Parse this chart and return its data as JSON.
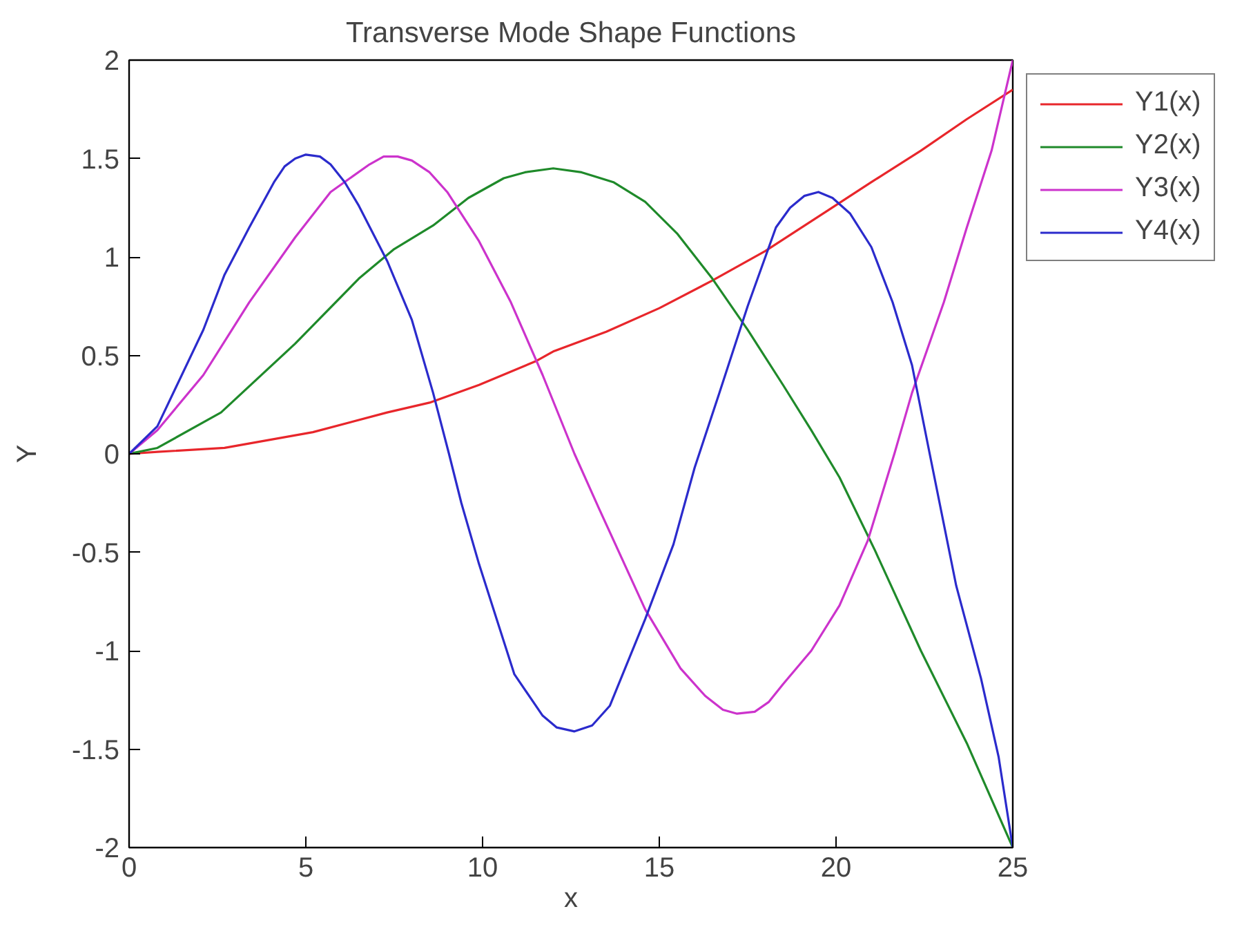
{
  "chart_data": {
    "type": "line",
    "title": "Transverse Mode Shape Functions",
    "xlabel": "x",
    "ylabel": "Y",
    "xlim": [
      0,
      25
    ],
    "ylim": [
      -2,
      2
    ],
    "xticks": [
      0,
      5,
      10,
      15,
      20,
      25
    ],
    "yticks": [
      -2,
      -1.5,
      -1,
      -0.5,
      0,
      0.5,
      1,
      1.5,
      2
    ],
    "legend": "top right",
    "marker": "none",
    "line_style": "solid",
    "series": [
      {
        "name": "Y1(x)",
        "color": "#e8262b",
        "x": [
          0,
          0.8,
          2.7,
          5.2,
          7.3,
          8.5,
          9.9,
          11.5,
          12.0,
          13.5,
          15.0,
          16.5,
          18.0,
          19.8,
          21.0,
          22.4,
          23.7,
          25
        ],
        "values": [
          0,
          0.01,
          0.03,
          0.11,
          0.21,
          0.26,
          0.35,
          0.47,
          0.52,
          0.62,
          0.74,
          0.88,
          1.03,
          1.24,
          1.38,
          1.54,
          1.7,
          1.85
        ]
      },
      {
        "name": "Y2(x)",
        "color": "#1f8a2a",
        "x": [
          0,
          0.8,
          2.6,
          4.7,
          6.5,
          7.5,
          8.6,
          9.6,
          10.6,
          11.2,
          12.0,
          12.8,
          13.7,
          14.6,
          15.5,
          16.5,
          17.5,
          18.5,
          19.3,
          20.1,
          21.1,
          22.4,
          23.7,
          25
        ],
        "values": [
          0,
          0.03,
          0.21,
          0.56,
          0.89,
          1.04,
          1.16,
          1.3,
          1.4,
          1.43,
          1.45,
          1.43,
          1.38,
          1.28,
          1.12,
          0.89,
          0.63,
          0.35,
          0.12,
          -0.12,
          -0.49,
          -1.0,
          -1.47,
          -2.0
        ]
      },
      {
        "name": "Y3(x)",
        "color": "#cc33cc",
        "x": [
          0,
          0.8,
          2.1,
          3.4,
          4.7,
          5.7,
          6.8,
          7.2,
          7.6,
          8.0,
          8.5,
          9.0,
          9.9,
          10.8,
          11.7,
          12.6,
          13.3,
          14.6,
          15.6,
          16.3,
          16.8,
          17.2,
          17.7,
          18.1,
          18.5,
          19.3,
          20.1,
          20.9,
          21.65,
          22.15,
          23.05,
          23.7,
          24.4,
          25
        ],
        "values": [
          0,
          0.12,
          0.4,
          0.77,
          1.1,
          1.33,
          1.47,
          1.51,
          1.51,
          1.49,
          1.43,
          1.33,
          1.08,
          0.77,
          0.4,
          0,
          -0.28,
          -0.79,
          -1.09,
          -1.23,
          -1.3,
          -1.32,
          -1.31,
          -1.26,
          -1.17,
          -1.0,
          -0.77,
          -0.44,
          0,
          0.31,
          0.77,
          1.15,
          1.54,
          2.0
        ]
      },
      {
        "name": "Y4(x)",
        "color": "#2b2bcc",
        "x": [
          0,
          0.8,
          2.1,
          2.7,
          3.4,
          4.1,
          4.4,
          4.7,
          5.0,
          5.4,
          5.7,
          6.1,
          6.5,
          7.3,
          8.0,
          8.6,
          9.05,
          9.4,
          9.9,
          10.4,
          10.9,
          11.7,
          12.1,
          12.6,
          13.1,
          13.6,
          14.6,
          15.4,
          16.0,
          16.7,
          17.5,
          18.3,
          18.7,
          19.1,
          19.5,
          19.9,
          20.4,
          21.0,
          21.6,
          22.15,
          22.65,
          23.4,
          24.1,
          24.6,
          25
        ],
        "values": [
          0,
          0.14,
          0.63,
          0.91,
          1.15,
          1.38,
          1.46,
          1.5,
          1.52,
          1.51,
          1.47,
          1.38,
          1.26,
          0.98,
          0.68,
          0.31,
          0,
          -0.25,
          -0.56,
          -0.84,
          -1.12,
          -1.33,
          -1.39,
          -1.41,
          -1.38,
          -1.28,
          -0.84,
          -0.46,
          -0.07,
          0.31,
          0.75,
          1.15,
          1.25,
          1.31,
          1.33,
          1.3,
          1.22,
          1.05,
          0.77,
          0.45,
          0,
          -0.67,
          -1.14,
          -1.54,
          -2.0
        ]
      }
    ]
  }
}
